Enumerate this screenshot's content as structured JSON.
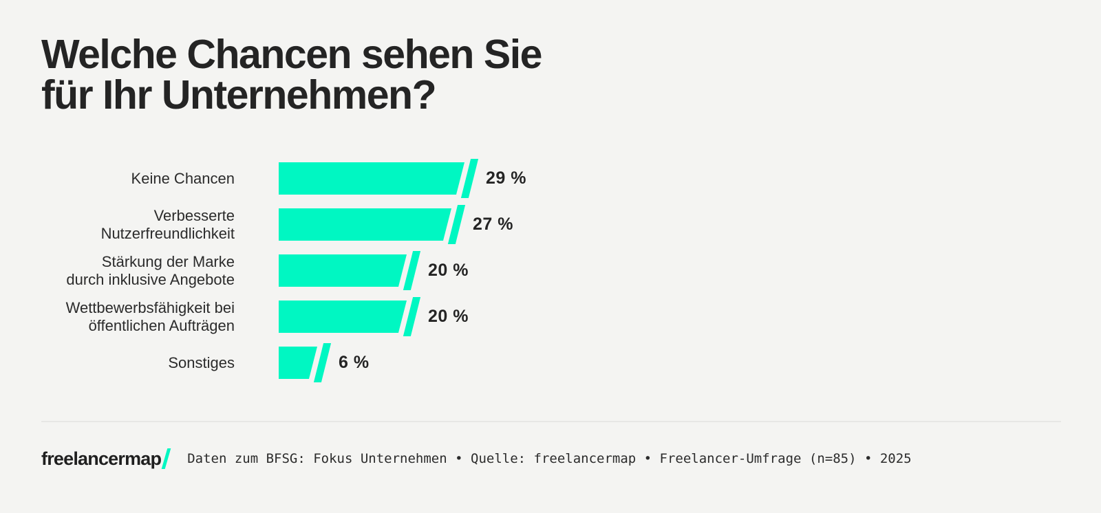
{
  "title": "Welche Chancen sehen Sie\nfür Ihr Unternehmen?",
  "chart_data": {
    "type": "bar",
    "orientation": "horizontal",
    "title": "Welche Chancen sehen Sie für Ihr Unternehmen?",
    "categories": [
      "Keine Chancen",
      "Verbesserte Nutzerfreundlichkeit",
      "Stärkung der Marke durch inklusive Angebote",
      "Wettbewerbsfähigkeit bei öffentlichen Aufträgen",
      "Sonstiges"
    ],
    "category_display_lines": [
      "Keine Chancen",
      "Verbesserte\nNutzerfreundlichkeit",
      "Stärkung der Marke\ndurch inklusive Angebote",
      "Wettbewerbsfähigkeit bei\nöffentlichen Aufträgen",
      "Sonstiges"
    ],
    "values": [
      29,
      27,
      20,
      20,
      6
    ],
    "value_labels": [
      "29 %",
      "27 %",
      "20 %",
      "20 %",
      "6 %"
    ],
    "unit": "%",
    "grid": false,
    "legend": false,
    "bar_color": "#00F7C2"
  },
  "footer": {
    "logo_text": "freelancermap",
    "logo_slash": "/",
    "source_text": "Daten zum BFSG: Fokus Unternehmen • Quelle: freelancermap • Freelancer-Umfrage (n=85) • 2025"
  },
  "colors": {
    "background": "#F4F4F2",
    "bar": "#00F7C2",
    "text": "#242424",
    "divider": "#E7E7E5"
  }
}
